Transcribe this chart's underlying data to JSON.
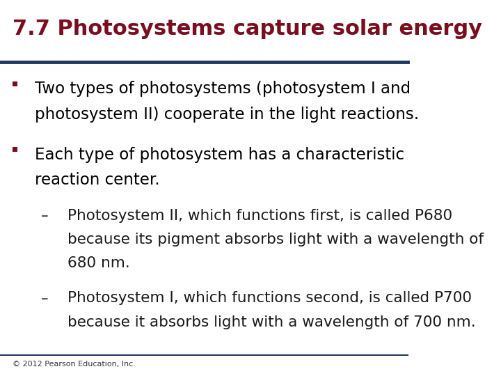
{
  "title": "7.7 Photosystems capture solar energy",
  "title_color": "#7B0D1E",
  "title_fontsize": 22,
  "bg_color": "#FFFFFF",
  "rule_color_top": "#1F3864",
  "rule_color_bottom": "#1F3864",
  "bullet_color": "#7B0D1E",
  "bullet1_line1": "Two types of photosystems (photosystem I and",
  "bullet1_line2": "photosystem II) cooperate in the light reactions.",
  "bullet2_line1": "Each type of photosystem has a characteristic",
  "bullet2_line2": "reaction center.",
  "sub1_dash": "–",
  "sub1_line1": "Photosystem II, which functions first, is called P680",
  "sub1_line2": "because its pigment absorbs light with a wavelength of",
  "sub1_line3": "680 nm.",
  "sub2_dash": "–",
  "sub2_line1": "Photosystem I, which functions second, is called P700",
  "sub2_line2": "because it absorbs light with a wavelength of 700 nm.",
  "footer": "© 2012 Pearson Education, Inc.",
  "text_color": "#000000",
  "sub_text_color": "#1A1A1A",
  "footer_color": "#333333",
  "body_fontsize": 16.5,
  "sub_fontsize": 15.5,
  "footer_fontsize": 8
}
